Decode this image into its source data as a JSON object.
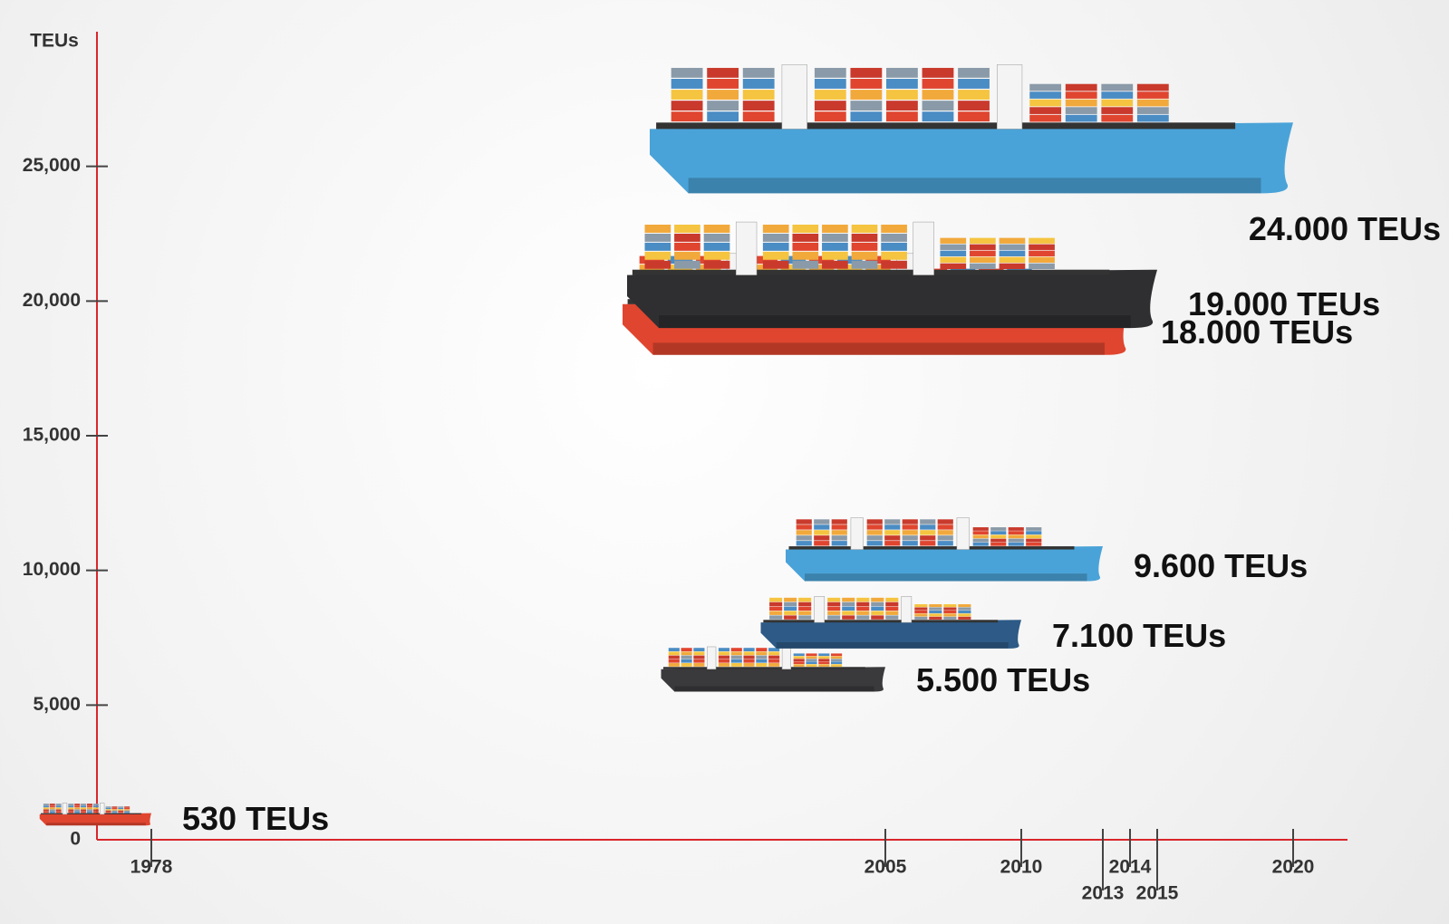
{
  "chart_data": {
    "type": "ship",
    "y_label": "TEUs",
    "x": [
      1978,
      2005,
      2010,
      2013,
      2014,
      2015,
      2020
    ],
    "values": [
      530,
      5500,
      7100,
      9600,
      18000,
      19000,
      24000
    ],
    "value_labels": [
      "530 TEUs",
      "5.500 TEUs",
      "7.100 TEUs",
      "9.600 TEUs",
      "18.000 TEUs",
      "19.000 TEUs",
      "24.000 TEUs"
    ],
    "colors": [
      "#e0452f",
      "#3a3a3c",
      "#2d5a86",
      "#4aa3d8",
      "#e0452f",
      "#2f2f31",
      "#4aa3d8"
    ],
    "xlim": [
      1976,
      2022
    ],
    "xticks": [
      1978,
      2005,
      2010,
      2013,
      2014,
      2015,
      2020
    ],
    "ylim": [
      0,
      30000
    ],
    "yticks": [
      0,
      {
        "value": 5000,
        "label": "5,000"
      },
      {
        "value": 10000,
        "label": "10,000"
      },
      {
        "value": 15000,
        "label": "15,000"
      },
      {
        "value": 20000,
        "label": "20,000"
      },
      {
        "value": 25000,
        "label": "25,000"
      }
    ],
    "axis_color": "#d9262b"
  }
}
